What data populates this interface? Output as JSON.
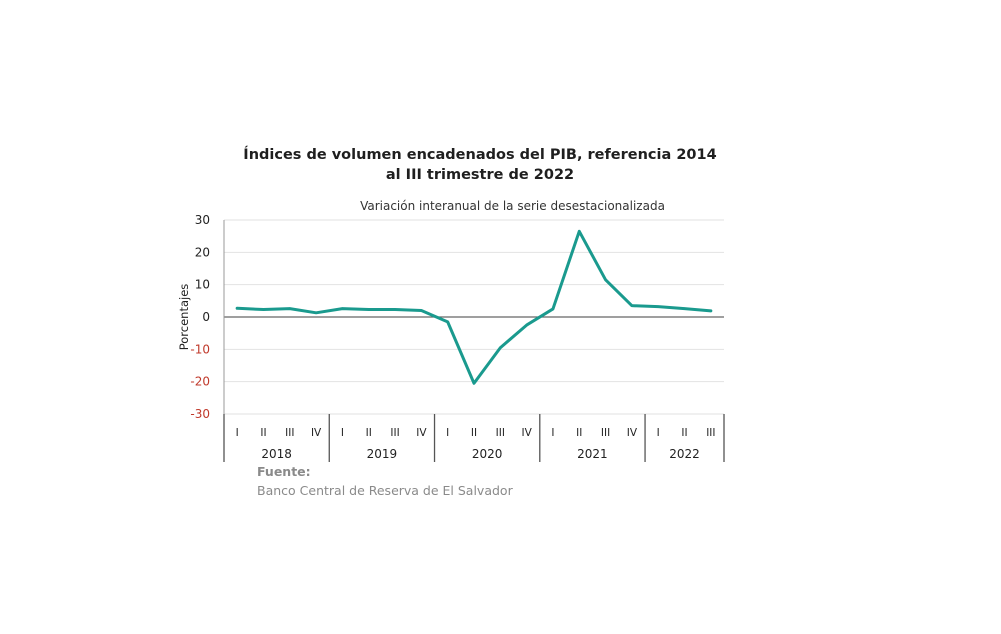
{
  "chart_data": {
    "type": "line",
    "title": "Índices de volumen encadenados del PIB, referencia 2014",
    "title_line2": "al III trimestre de 2022",
    "subtitle": "Variación interanual de la serie desestacionalizada",
    "ylabel": "Porcentajes",
    "ylim": [
      -30,
      30
    ],
    "yticks": [
      30,
      20,
      10,
      0,
      -10,
      -20,
      -30
    ],
    "negative_tick_color": "#c0392b",
    "line_color": "#1a9a8e",
    "grid": true,
    "categories": [
      "I",
      "II",
      "III",
      "IV",
      "I",
      "II",
      "III",
      "IV",
      "I",
      "II",
      "III",
      "IV",
      "I",
      "II",
      "III",
      "IV",
      "I",
      "II",
      "III"
    ],
    "years": [
      {
        "label": "2018",
        "quarters": 4
      },
      {
        "label": "2019",
        "quarters": 4
      },
      {
        "label": "2020",
        "quarters": 4
      },
      {
        "label": "2021",
        "quarters": 4
      },
      {
        "label": "2022",
        "quarters": 3
      }
    ],
    "series": [
      {
        "values": [
          2.7,
          2.3,
          2.6,
          1.3,
          2.6,
          2.3,
          2.3,
          2.0,
          -1.5,
          -20.5,
          -9.5,
          -2.5,
          2.5,
          26.5,
          11.5,
          3.5,
          3.2,
          2.6,
          1.9
        ]
      }
    ]
  },
  "source": {
    "label": "Fuente:",
    "text": "Banco Central de Reserva de El Salvador"
  }
}
